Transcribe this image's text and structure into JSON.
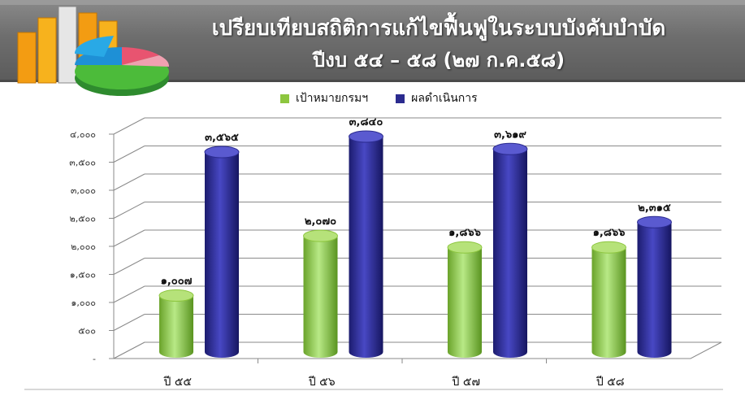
{
  "header": {
    "title_line1": "เปรียบเทียบสถิติการแก้ไขฟื้นฟูในระบบบังคับบำบัด",
    "title_line2": "ปีงบ ๕๔ – ๕๘ (๒๗ ก.ค.๕๘)"
  },
  "colors": {
    "target": "#8dc63f",
    "result": "#2b2b8f",
    "banner": "#6e6e6e"
  },
  "chart_data": {
    "type": "bar",
    "categories": [
      "ปี ๕๕",
      "ปี ๕๖",
      "ปี ๕๗",
      "ปี ๕๘"
    ],
    "series": [
      {
        "name": "เป้าหมายกรมฯ",
        "values": [
          1007,
          2070,
          1866,
          1866
        ],
        "value_labels": [
          "๑,๐๐๗",
          "๒,๐๗๐",
          "๑,๘๖๖",
          "๑,๘๖๖"
        ]
      },
      {
        "name": "ผลดำเนินการ",
        "values": [
          3565,
          3840,
          3619,
          2315
        ],
        "value_labels": [
          "๓,๕๖๕",
          "๓,๘๔๐",
          "๓,๖๑๙",
          "๒,๓๑๕"
        ]
      }
    ],
    "ylim": [
      0,
      4000
    ],
    "y_ticks": [
      0,
      500,
      1000,
      1500,
      2000,
      2500,
      3000,
      3500,
      4000
    ],
    "y_tick_labels": [
      "-",
      "๕๐๐",
      "๑,๐๐๐",
      "๑,๕๐๐",
      "๒,๐๐๐",
      "๒,๕๐๐",
      "๓,๐๐๐",
      "๓,๕๐๐",
      "๔,๐๐๐"
    ],
    "grid": true,
    "legend_position": "top-center",
    "style": "3d-cylinder"
  }
}
